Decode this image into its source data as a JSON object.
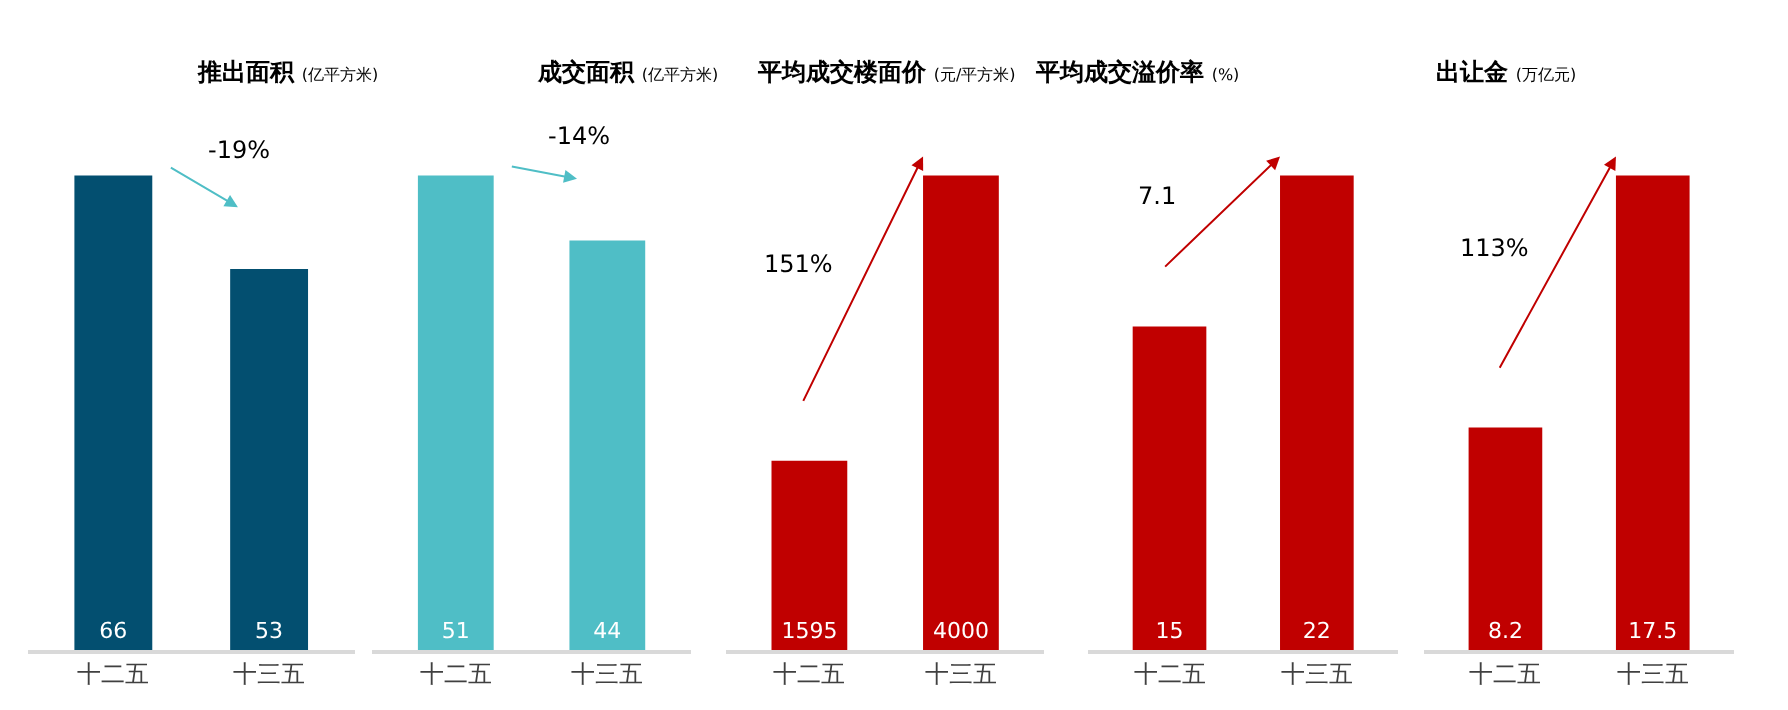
{
  "chart_data": [
    {
      "type": "bar",
      "title": "推出面积",
      "subtitle": "(亿平方米)",
      "categories": [
        "十二五",
        "十三五"
      ],
      "values": [
        66,
        53
      ],
      "color": "#034f70",
      "data_labels": true,
      "tick_labels": "x",
      "annotations": [
        "-19%"
      ]
    },
    {
      "type": "bar",
      "title": "成交面积",
      "subtitle": "(亿平方米)",
      "categories": [
        "十二五",
        "十三五"
      ],
      "values": [
        51,
        44
      ],
      "color": "#4fbec6",
      "data_labels": true,
      "tick_labels": "x",
      "annotations": [
        "-14%"
      ]
    },
    {
      "type": "bar",
      "title": "平均成交楼面价",
      "subtitle": "(元/平方米)",
      "categories": [
        "十二五",
        "十三五"
      ],
      "values": [
        1595,
        4000
      ],
      "color": "#c00000",
      "data_labels": true,
      "tick_labels": "x",
      "annotations": [
        "151%"
      ]
    },
    {
      "type": "bar",
      "title": "平均成交溢价率",
      "subtitle": "(%)",
      "categories": [
        "十二五",
        "十三五"
      ],
      "values": [
        15,
        22
      ],
      "color": "#c00000",
      "data_labels": true,
      "tick_labels": "x",
      "annotations": [
        "7.1"
      ]
    },
    {
      "type": "bar",
      "title": "出让金",
      "subtitle": "(万亿元)",
      "categories": [
        "十二五",
        "十三五"
      ],
      "values": [
        8.2,
        17.5
      ],
      "color": "#c00000",
      "data_labels": true,
      "tick_labels": "x",
      "annotations": [
        "113%"
      ]
    }
  ]
}
